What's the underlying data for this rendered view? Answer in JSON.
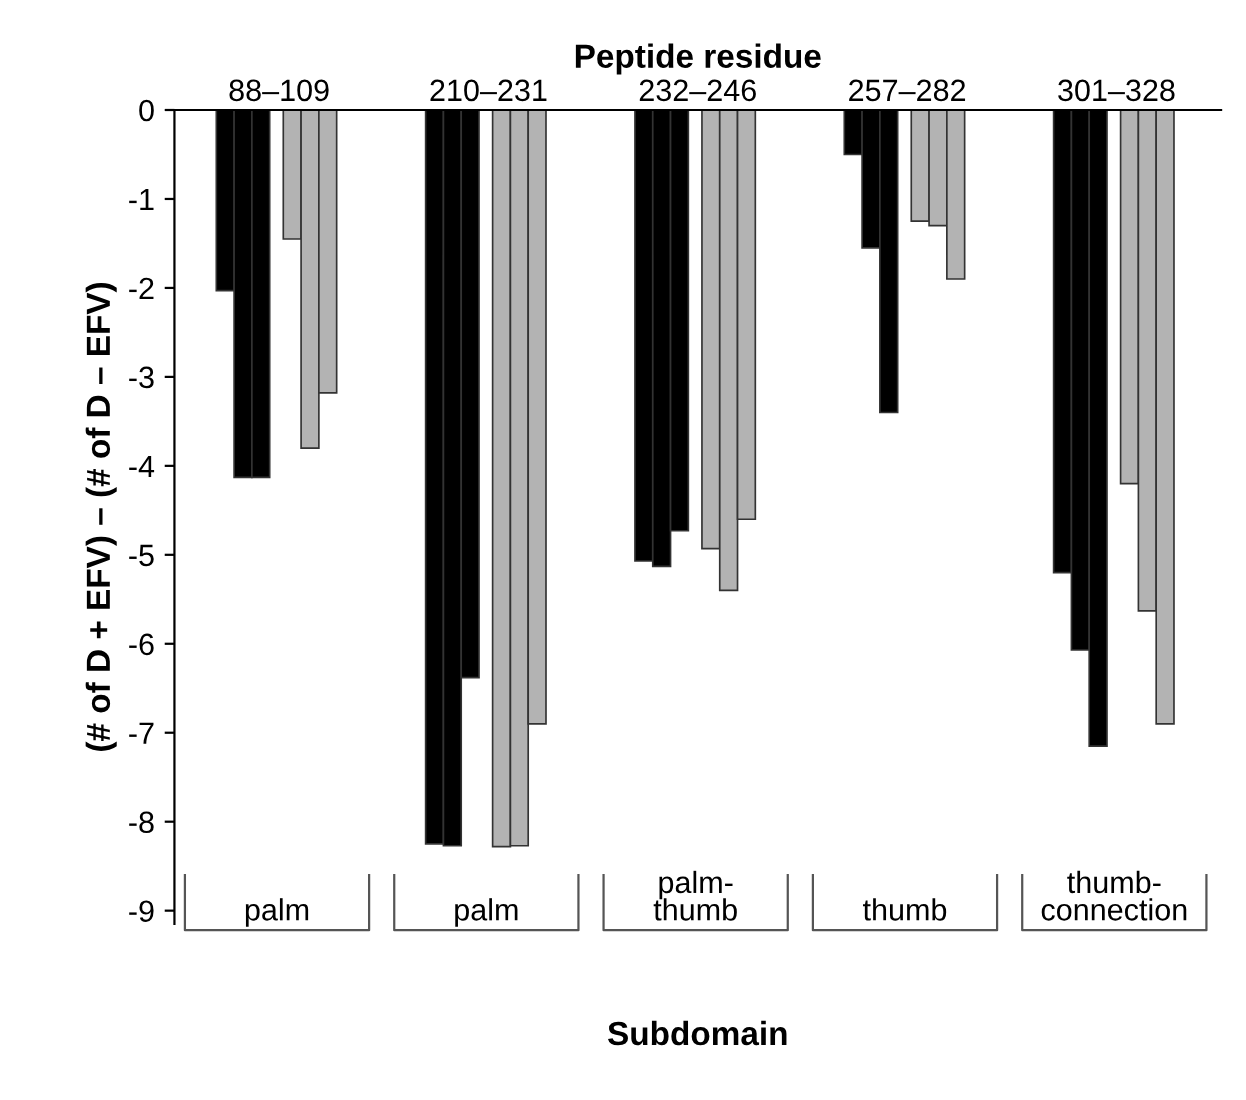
{
  "chart_data": {
    "type": "bar",
    "x2label": "Peptide residue",
    "xlabel": "Subdomain",
    "ylabel": "(# of D + EFV) – (# of D – EFV)",
    "categories": [
      "88–109",
      "210–231",
      "232–246",
      "257–282",
      "301–328"
    ],
    "series": [
      {
        "color": "#000000",
        "values": [
          -2.03,
          -8.25,
          -5.07,
          -0.5,
          -5.2
        ]
      },
      {
        "color": "#000000",
        "values": [
          -4.13,
          -8.27,
          -5.13,
          -1.55,
          -6.07
        ]
      },
      {
        "color": "#000000",
        "values": [
          -4.13,
          -6.38,
          -4.73,
          -3.4,
          -7.15
        ]
      },
      {
        "color": "#b3b3b3",
        "values": [
          -1.45,
          -8.28,
          -4.93,
          -1.25,
          -4.2
        ]
      },
      {
        "color": "#b3b3b3",
        "values": [
          -3.8,
          -8.27,
          -5.4,
          -1.3,
          -5.63
        ]
      },
      {
        "color": "#b3b3b3",
        "values": [
          -3.18,
          -6.9,
          -4.6,
          -1.9,
          -6.9
        ]
      }
    ],
    "annotations": [
      "palm",
      "palm",
      "palm-\nthumb",
      "thumb",
      "thumb-\nconnection"
    ],
    "ylim": [
      -9.15,
      0
    ],
    "yticks": [
      0,
      -1,
      -2,
      -3,
      -4,
      -5,
      -6,
      -7,
      -8,
      -9
    ],
    "grid": false,
    "legend": false
  }
}
